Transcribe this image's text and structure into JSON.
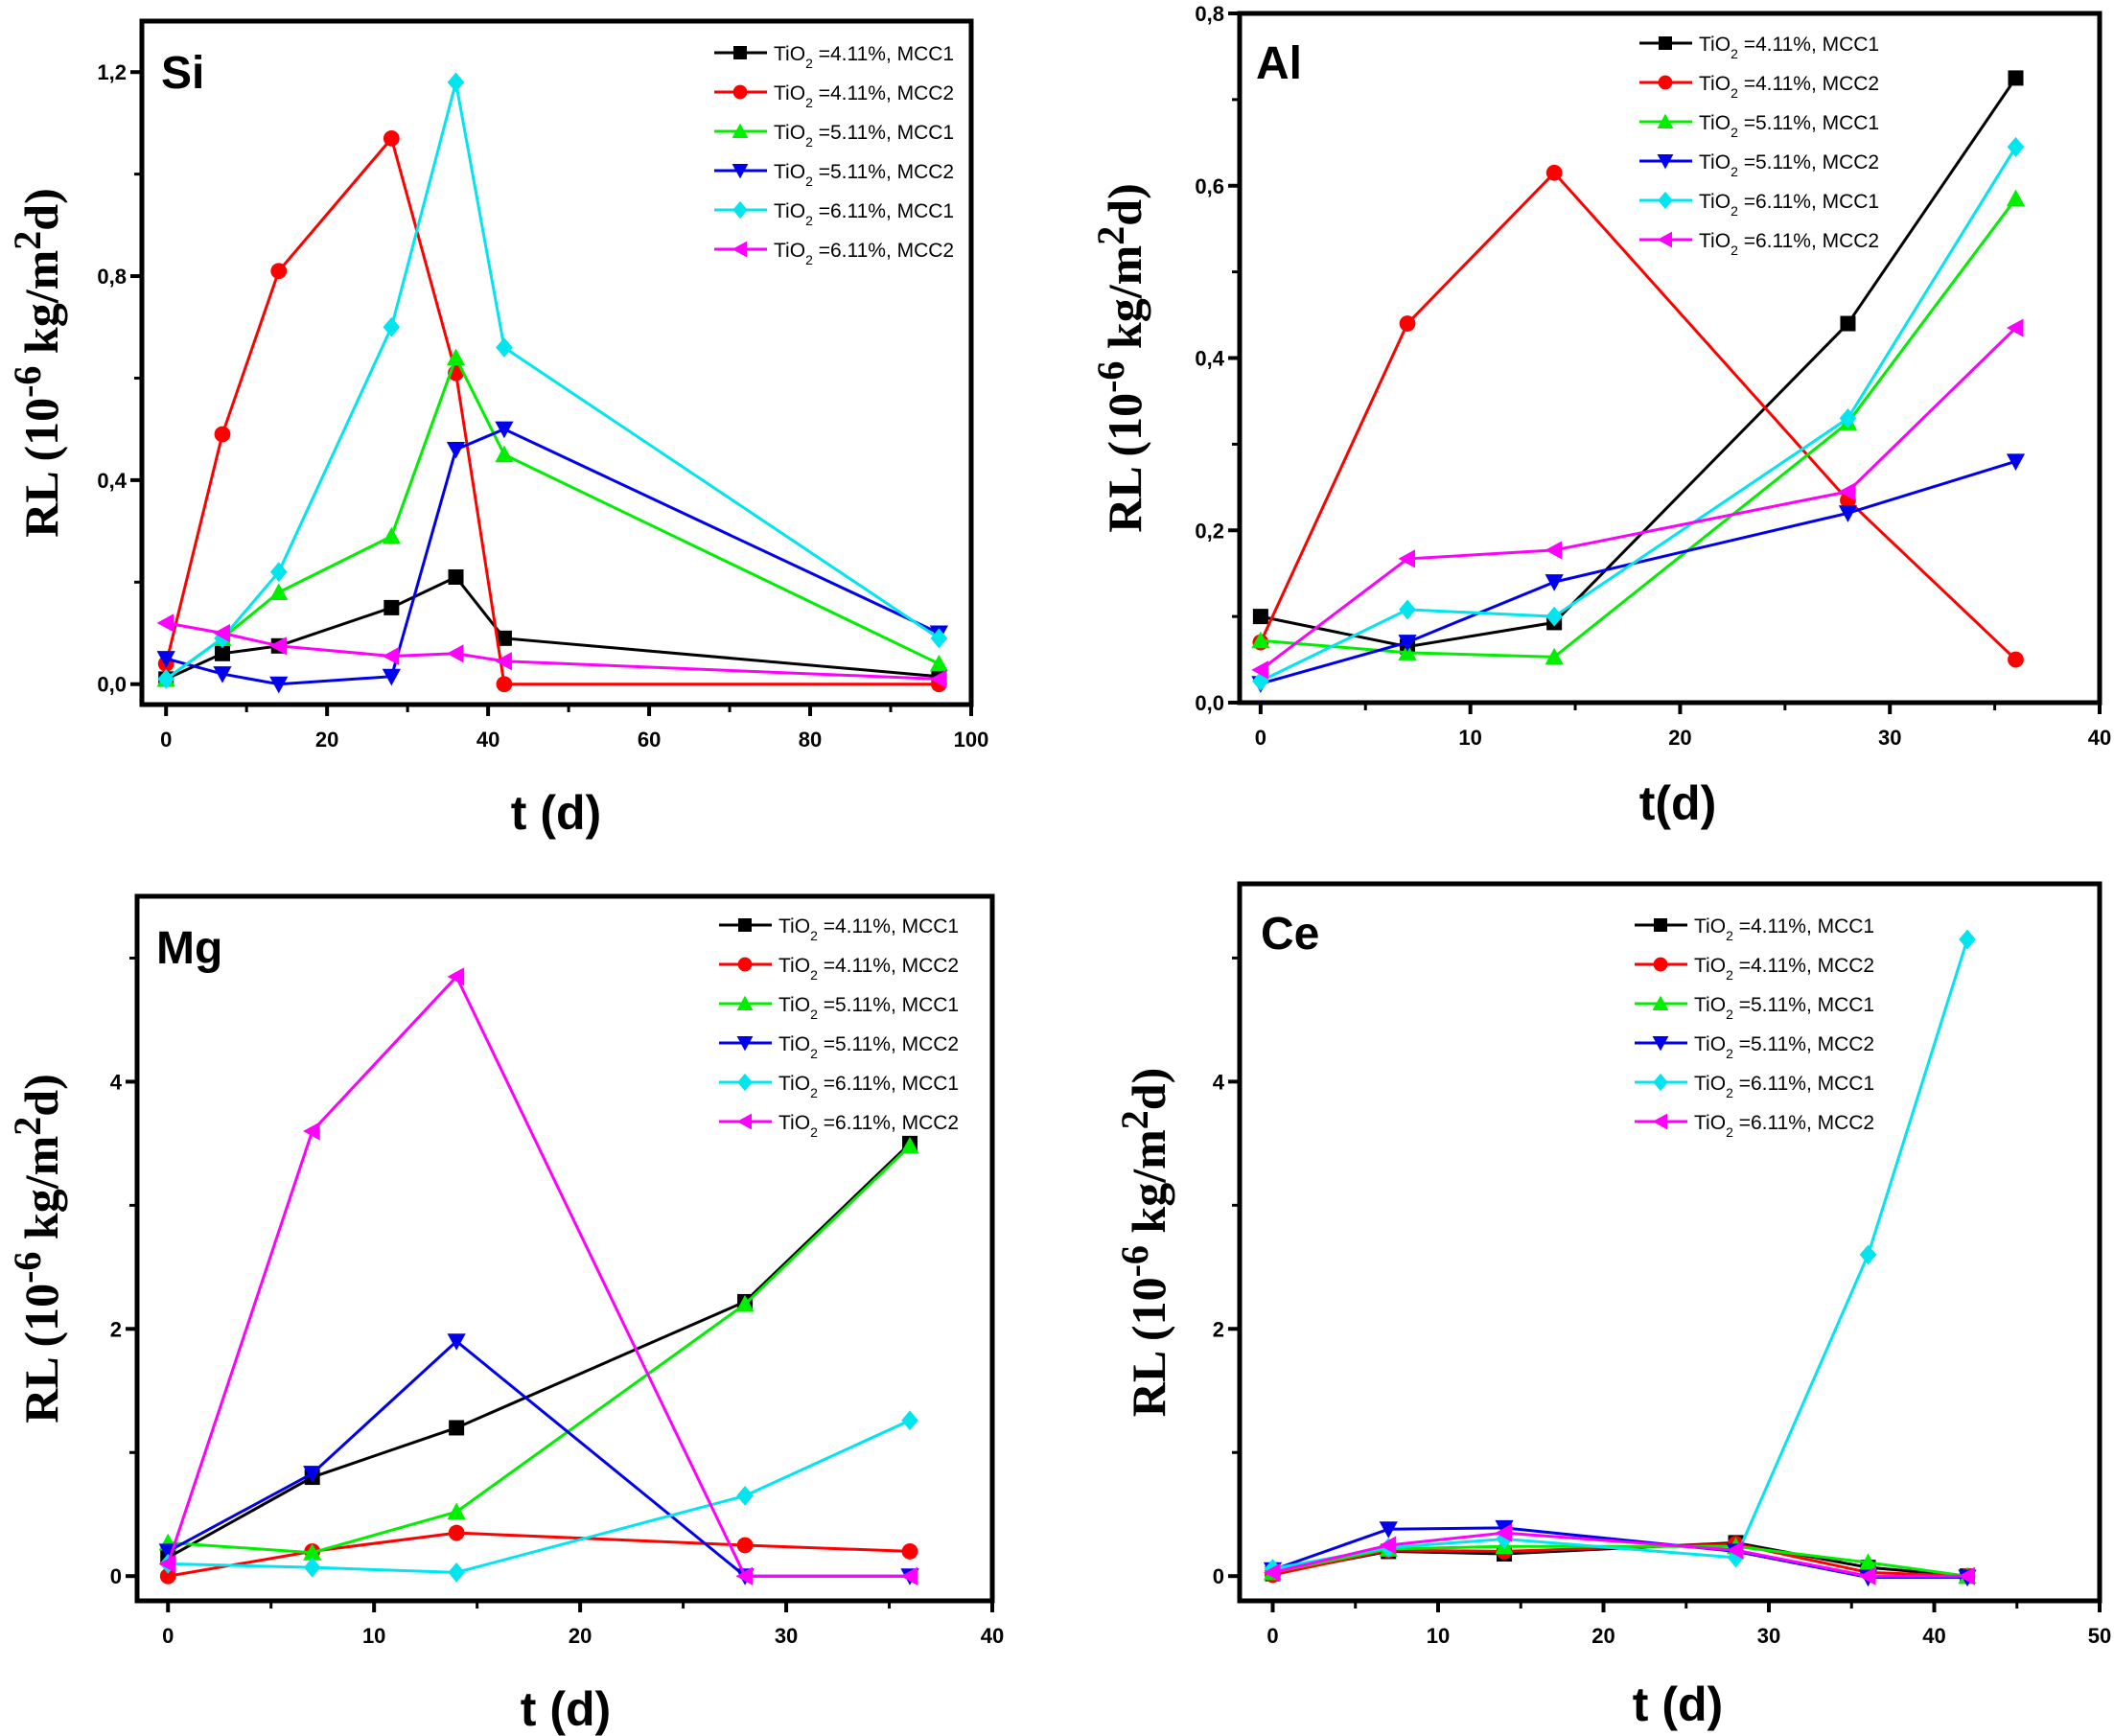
{
  "figure": {
    "legend_entries": [
      "TiO2 =4.11%, MCC1",
      "TiO2 =4.11%, MCC2",
      "TiO2 =5.11%, MCC1",
      "TiO2 =5.11%, MCC2",
      "TiO2 =6.11%, MCC1",
      "TiO2 =6.11%, MCC2"
    ],
    "series_styles": [
      {
        "color": "#000000",
        "marker": "square"
      },
      {
        "color": "#ff0000",
        "marker": "circle"
      },
      {
        "color": "#00ee00",
        "marker": "triangle-up"
      },
      {
        "color": "#0000ee",
        "marker": "triangle-down"
      },
      {
        "color": "#00e5ee",
        "marker": "diamond"
      },
      {
        "color": "#ff00ff",
        "marker": "triangle-left"
      }
    ]
  },
  "chart_data": [
    {
      "type": "line",
      "title": "Si",
      "xlabel": "t (d)",
      "ylabel": "RL (10-6 kg/m2d)",
      "xlim": [
        -3,
        100
      ],
      "ylim": [
        -0.04,
        1.3
      ],
      "xticks": [
        0,
        20,
        40,
        60,
        80,
        100
      ],
      "xtick_labels": [
        "0",
        "20",
        "40",
        "60",
        "80",
        "100"
      ],
      "yticks": [
        0.0,
        0.4,
        0.8,
        1.2
      ],
      "ytick_labels": [
        "0,0",
        "0,4",
        "0,8",
        "1,2"
      ],
      "legend_position": "top-right",
      "x": [
        0,
        7,
        14,
        28,
        36,
        42,
        96
      ],
      "series": [
        {
          "name": "TiO2 =4.11%, MCC1",
          "values": [
            0.01,
            0.06,
            0.075,
            0.15,
            0.21,
            0.09,
            0.015
          ]
        },
        {
          "name": "TiO2 =4.11%, MCC2",
          "values": [
            0.04,
            0.49,
            0.81,
            1.07,
            0.61,
            0.0,
            0.0
          ]
        },
        {
          "name": "TiO2 =5.11%, MCC1",
          "values": [
            0.01,
            0.09,
            0.18,
            0.29,
            0.64,
            0.45,
            0.04
          ]
        },
        {
          "name": "TiO2 =5.11%, MCC2",
          "values": [
            0.05,
            0.02,
            0.0,
            0.015,
            0.46,
            0.5,
            0.1
          ]
        },
        {
          "name": "TiO2 =6.11%, MCC1",
          "values": [
            0.01,
            0.09,
            0.22,
            0.7,
            1.18,
            0.66,
            0.09
          ]
        },
        {
          "name": "TiO2 =6.11%, MCC2",
          "values": [
            0.12,
            0.1,
            0.075,
            0.055,
            0.06,
            0.045,
            0.01
          ]
        }
      ]
    },
    {
      "type": "line",
      "title": "Al",
      "xlabel": "t(d)",
      "ylabel": "RL (10-6 kg/m2d)",
      "xlim": [
        -1,
        40
      ],
      "ylim": [
        0.0,
        0.8
      ],
      "xticks": [
        0,
        10,
        20,
        30,
        40
      ],
      "xtick_labels": [
        "0",
        "10",
        "20",
        "30",
        "40"
      ],
      "yticks": [
        0.0,
        0.2,
        0.4,
        0.6,
        0.8
      ],
      "ytick_labels": [
        "0,0",
        "0,2",
        "0,4",
        "0,6",
        "0,8"
      ],
      "legend_position": "top-right",
      "x": [
        0,
        7,
        14,
        28,
        36
      ],
      "series": [
        {
          "name": "TiO2 =4.11%, MCC1",
          "values": [
            0.1,
            0.065,
            0.093,
            0.44,
            0.725
          ]
        },
        {
          "name": "TiO2 =4.11%, MCC2",
          "values": [
            0.07,
            0.44,
            0.615,
            0.235,
            0.05
          ]
        },
        {
          "name": "TiO2 =5.11%, MCC1",
          "values": [
            0.072,
            0.058,
            0.053,
            0.325,
            0.585
          ]
        },
        {
          "name": "TiO2 =5.11%, MCC2",
          "values": [
            0.022,
            0.07,
            0.14,
            0.22,
            0.28
          ]
        },
        {
          "name": "TiO2 =6.11%, MCC1",
          "values": [
            0.025,
            0.108,
            0.1,
            0.33,
            0.645
          ]
        },
        {
          "name": "TiO2 =6.11%, MCC2",
          "values": [
            0.038,
            0.167,
            0.177,
            0.245,
            0.435
          ]
        }
      ]
    },
    {
      "type": "line",
      "title": "Mg",
      "xlabel": "t (d)",
      "ylabel": "RL (10-6 kg/m2d)",
      "xlim": [
        -1.5,
        40
      ],
      "ylim": [
        -0.2,
        5.5
      ],
      "xticks": [
        0,
        10,
        20,
        30,
        40
      ],
      "xtick_labels": [
        "0",
        "10",
        "20",
        "30",
        "40"
      ],
      "yticks": [
        0,
        2,
        4
      ],
      "ytick_labels": [
        "0",
        "2",
        "4"
      ],
      "legend_position": "top-right",
      "x": [
        0,
        7,
        14,
        28,
        36
      ],
      "series": [
        {
          "name": "TiO2 =4.11%, MCC1",
          "values": [
            0.15,
            0.8,
            1.2,
            2.22,
            3.5
          ]
        },
        {
          "name": "TiO2 =4.11%, MCC2",
          "values": [
            0.0,
            0.2,
            0.35,
            0.25,
            0.2
          ]
        },
        {
          "name": "TiO2 =5.11%, MCC1",
          "values": [
            0.27,
            0.19,
            0.52,
            2.2,
            3.48
          ]
        },
        {
          "name": "TiO2 =5.11%, MCC2",
          "values": [
            0.2,
            0.83,
            1.9,
            0.0,
            0.0
          ]
        },
        {
          "name": "TiO2 =6.11%, MCC1",
          "values": [
            0.1,
            0.07,
            0.03,
            0.65,
            1.26
          ]
        },
        {
          "name": "TiO2 =6.11%, MCC2",
          "values": [
            0.1,
            3.6,
            4.85,
            0.0,
            0.0
          ]
        }
      ]
    },
    {
      "type": "line",
      "title": "Ce",
      "xlabel": "t (d)",
      "ylabel": "RL (10-6 kg/m2d)",
      "xlim": [
        -2,
        50
      ],
      "ylim": [
        -0.2,
        5.6
      ],
      "xticks": [
        0,
        10,
        20,
        30,
        40,
        50
      ],
      "xtick_labels": [
        "0",
        "10",
        "20",
        "30",
        "40",
        "50"
      ],
      "yticks": [
        0,
        2,
        4
      ],
      "ytick_labels": [
        "0",
        "2",
        "4"
      ],
      "legend_position": "top-right",
      "x": [
        0,
        7,
        14,
        28,
        36,
        42
      ],
      "series": [
        {
          "name": "TiO2 =4.11%, MCC1",
          "values": [
            0.02,
            0.2,
            0.18,
            0.27,
            0.07,
            0.0
          ]
        },
        {
          "name": "TiO2 =4.11%, MCC2",
          "values": [
            0.01,
            0.21,
            0.2,
            0.26,
            0.03,
            0.0
          ]
        },
        {
          "name": "TiO2 =5.11%, MCC1",
          "values": [
            0.03,
            0.22,
            0.24,
            0.24,
            0.11,
            0.0
          ]
        },
        {
          "name": "TiO2 =5.11%, MCC2",
          "values": [
            0.05,
            0.38,
            0.39,
            0.2,
            -0.01,
            -0.01
          ]
        },
        {
          "name": "TiO2 =6.11%, MCC1",
          "values": [
            0.06,
            0.23,
            0.3,
            0.15,
            2.6,
            5.15
          ]
        },
        {
          "name": "TiO2 =6.11%, MCC2",
          "values": [
            0.03,
            0.25,
            0.35,
            0.21,
            0.0,
            0.0
          ]
        }
      ]
    }
  ]
}
